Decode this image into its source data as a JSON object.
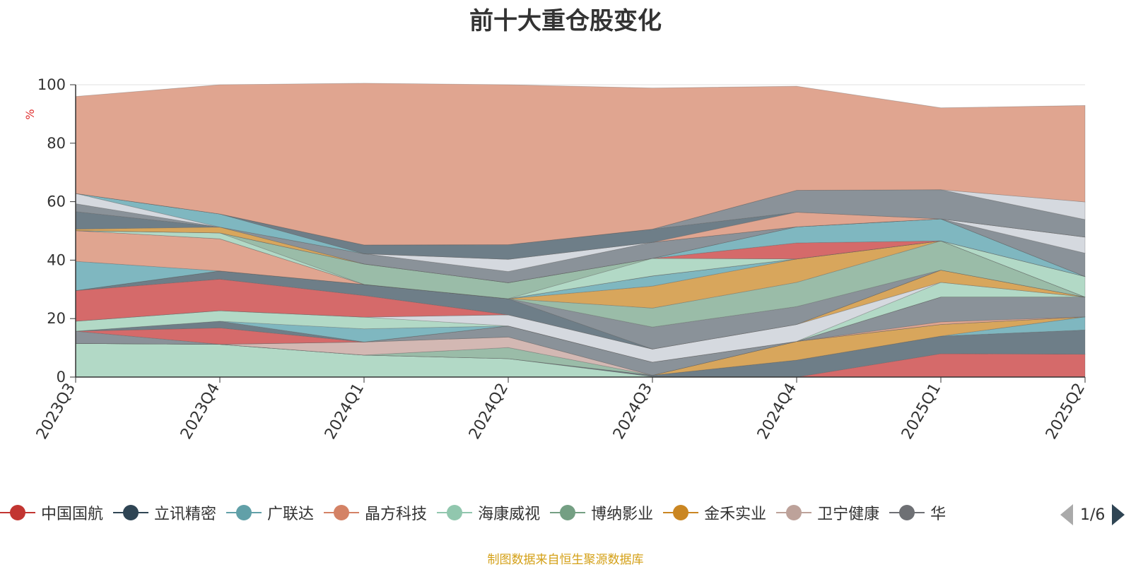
{
  "chart_data": {
    "type": "area",
    "title": "前十大重仓股变化",
    "ylabel": "%",
    "ylim": [
      0,
      100
    ],
    "y_ticks": [
      "0",
      "20",
      "40",
      "60",
      "80",
      "100"
    ],
    "categories": [
      "2023Q3",
      "2023Q4",
      "2024Q1",
      "2024Q2",
      "2024Q3",
      "2024Q4",
      "2025Q1",
      "2025Q2"
    ],
    "stacked": true,
    "series": [
      {
        "name": "",
        "color": "#b2d9c6",
        "values": [
          11.5,
          11.2,
          7.5,
          6.3,
          0.2,
          0,
          0,
          0
        ]
      },
      {
        "name": "",
        "color": "#d56a6a",
        "values": [
          0,
          0,
          0,
          0,
          0,
          0,
          8.0,
          7.8
        ]
      },
      {
        "name": "",
        "color": "#6e7e88",
        "values": [
          0,
          0,
          0,
          0,
          0.4,
          5.8,
          6.0,
          8.3
        ]
      },
      {
        "name": "",
        "color": "#7fb7c0",
        "values": [
          0,
          0,
          0,
          0,
          0,
          0,
          0,
          4.5
        ]
      },
      {
        "name": "",
        "color": "#d8a65c",
        "values": [
          0,
          0,
          0,
          0,
          0,
          6.4,
          4.0,
          0
        ]
      },
      {
        "name": "",
        "color": "#9abca8",
        "values": [
          0,
          0,
          0,
          3.8,
          0,
          0,
          0,
          0
        ]
      },
      {
        "name": "",
        "color": "#d3b8b3",
        "values": [
          0,
          0,
          4.5,
          3.6,
          0,
          0,
          0,
          0
        ]
      },
      {
        "name": "",
        "color": "#e0a590",
        "values": [
          0,
          0,
          0,
          0,
          0,
          0,
          0.9,
          0
        ]
      },
      {
        "name": "",
        "color": "#8a9299",
        "values": [
          4.2,
          0,
          0,
          3.8,
          4.5,
          0,
          8.5,
          6.8
        ]
      },
      {
        "name": "",
        "color": "#d56a6a",
        "values": [
          0,
          5.6,
          0,
          0,
          0,
          0,
          0,
          0
        ]
      },
      {
        "name": "",
        "color": "#6e7e88",
        "values": [
          0,
          2.3,
          0,
          0,
          0,
          0,
          0,
          0
        ]
      },
      {
        "name": "",
        "color": "#7fb7c0",
        "values": [
          0,
          0,
          4.5,
          0,
          0,
          0,
          0,
          0
        ]
      },
      {
        "name": "",
        "color": "#b2d9c6",
        "values": [
          3.4,
          3.6,
          4.0,
          0,
          0,
          0,
          5.0,
          0
        ]
      },
      {
        "name": "",
        "color": "#d5d9df",
        "values": [
          0,
          0,
          0,
          3.8,
          4.5,
          5.8,
          0,
          0
        ]
      },
      {
        "name": "",
        "color": "#d8a65c",
        "values": [
          0,
          0,
          0,
          0,
          0,
          0,
          4.2,
          0
        ]
      },
      {
        "name": "",
        "color": "#d56a6a",
        "values": [
          10.5,
          10.8,
          7.4,
          0,
          0,
          0,
          0,
          0
        ]
      },
      {
        "name": "",
        "color": "#6e7e88",
        "values": [
          0,
          2.8,
          3.8,
          5.5,
          0,
          0,
          0,
          0
        ]
      },
      {
        "name": "",
        "color": "#8a9299",
        "values": [
          0,
          0,
          0,
          0,
          7.5,
          6.1,
          0,
          0
        ]
      },
      {
        "name": "",
        "color": "#9abca8",
        "values": [
          0,
          0,
          0,
          0,
          6.5,
          8.3,
          10.0,
          0
        ]
      },
      {
        "name": "",
        "color": "#d8a65c",
        "values": [
          0,
          0,
          0,
          0,
          7.5,
          8.0,
          0,
          0
        ]
      },
      {
        "name": "",
        "color": "#7fb7c0",
        "values": [
          10,
          0,
          0,
          0,
          3.5,
          0,
          0,
          0
        ]
      },
      {
        "name": "",
        "color": "#e0a590",
        "values": [
          10.5,
          11.0,
          0,
          0,
          0,
          0,
          0,
          0
        ]
      },
      {
        "name": "",
        "color": "#b2d9c6",
        "values": [
          0,
          0,
          0,
          0,
          0,
          0,
          0,
          7.0
        ]
      },
      {
        "name": "",
        "color": "#b2d9c6",
        "values": [
          0,
          2.0,
          0,
          0,
          6.0,
          0,
          0,
          0
        ]
      },
      {
        "name": "",
        "color": "#9abca8",
        "values": [
          0,
          0,
          7.0,
          5.5,
          0,
          0,
          0,
          0
        ]
      },
      {
        "name": "",
        "color": "#d56a6a",
        "values": [
          0,
          0,
          0,
          0,
          0,
          5.5,
          0,
          0
        ]
      },
      {
        "name": "",
        "color": "#7fb7c0",
        "values": [
          0,
          0,
          0,
          0,
          0,
          5.5,
          7.5,
          0
        ]
      },
      {
        "name": "",
        "color": "#d8a65c",
        "values": [
          0.5,
          2.0,
          0,
          0,
          0,
          0,
          0,
          0
        ]
      },
      {
        "name": "",
        "color": "#6e7e88",
        "values": [
          6.0,
          0,
          0,
          0,
          0,
          0,
          0,
          0
        ]
      },
      {
        "name": "",
        "color": "#8a9299",
        "values": [
          2.7,
          0,
          3.5,
          3.8,
          5.5,
          0,
          0,
          8.0
        ]
      },
      {
        "name": "",
        "color": "#d5d9df",
        "values": [
          3.5,
          0,
          0,
          4.2,
          0,
          0,
          0,
          5.5
        ]
      },
      {
        "name": "",
        "color": "#7fb7c0",
        "values": [
          0,
          4.5,
          0,
          0,
          0,
          0,
          0,
          0
        ]
      },
      {
        "name": "",
        "color": "#e0a590",
        "values": [
          0,
          0,
          0,
          0,
          0,
          5.0,
          0,
          0
        ]
      },
      {
        "name": "",
        "color": "#6e7e88",
        "values": [
          0,
          0,
          3.0,
          5.0,
          4.5,
          0,
          0,
          0
        ]
      },
      {
        "name": "",
        "color": "#8a9299",
        "values": [
          0,
          0,
          0,
          0,
          0,
          7.5,
          10.0,
          6.0
        ]
      },
      {
        "name": "",
        "color": "#d5d9df",
        "values": [
          0,
          0,
          0,
          0,
          0,
          0,
          0,
          6.0
        ]
      },
      {
        "name": "",
        "color": "#e0a590",
        "values": [
          33.2,
          44.2,
          55.3,
          54.7,
          48.3,
          35.6,
          28.0,
          33.0
        ]
      }
    ]
  },
  "legend": {
    "items": [
      {
        "label": "中国国航",
        "color": "#c23531"
      },
      {
        "label": "立讯精密",
        "color": "#2f4554"
      },
      {
        "label": "广联达",
        "color": "#61a0a8"
      },
      {
        "label": "晶方科技",
        "color": "#d48265"
      },
      {
        "label": "海康威视",
        "color": "#91c7ae"
      },
      {
        "label": "博纳影业",
        "color": "#749f83"
      },
      {
        "label": "金禾实业",
        "color": "#ca8622"
      },
      {
        "label": "卫宁健康",
        "color": "#bda29a"
      },
      {
        "label": "华",
        "color": "#6e7074"
      }
    ],
    "pager": "1/6"
  },
  "footer": {
    "source_note": "制图数据来自恒生聚源数据库"
  }
}
